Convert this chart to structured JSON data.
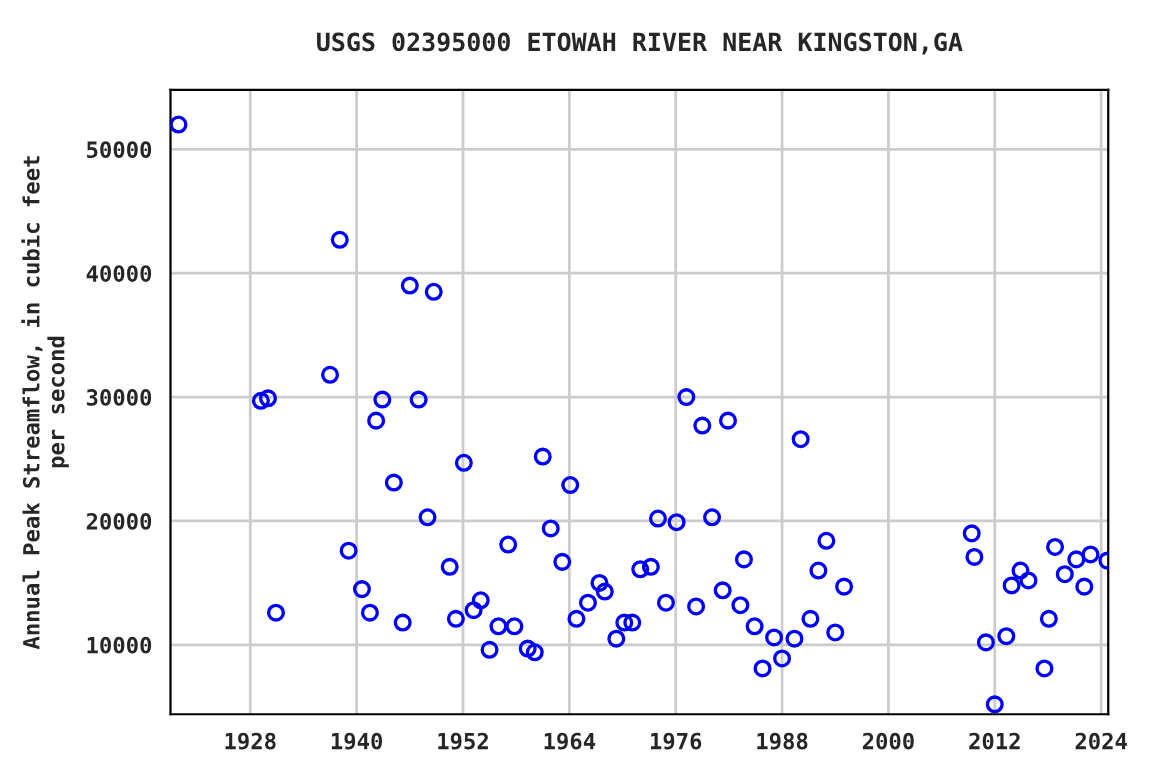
{
  "chart_data": {
    "type": "scatter",
    "title": "USGS 02395000 ETOWAH RIVER NEAR KINGSTON,GA",
    "ylabel": "Annual Peak Streamflow, in cubic feet\nper second",
    "x": [
      1919.9,
      1929.2,
      1930.0,
      1930.9,
      1937.0,
      1938.1,
      1939.1,
      1940.6,
      1941.5,
      1942.2,
      1942.9,
      1944.2,
      1945.2,
      1946.0,
      1947.0,
      1948.0,
      1948.7,
      1950.5,
      1951.2,
      1952.1,
      1953.2,
      1954.0,
      1955.0,
      1956.0,
      1957.1,
      1957.8,
      1959.3,
      1960.1,
      1961.0,
      1961.9,
      1963.2,
      1964.1,
      1964.8,
      1966.1,
      1967.4,
      1968.0,
      1969.3,
      1970.2,
      1971.1,
      1972.0,
      1973.2,
      1974.0,
      1974.9,
      1976.1,
      1977.2,
      1978.3,
      1979.0,
      1980.1,
      1981.3,
      1981.9,
      1983.3,
      1983.7,
      1984.9,
      1985.8,
      1987.1,
      1988.0,
      1989.4,
      1990.1,
      1991.2,
      1992.1,
      1993.0,
      1994.0,
      1995.0,
      2009.4,
      2009.7,
      2011.0,
      2012.0,
      2013.3,
      2013.9,
      2014.9,
      2015.8,
      2017.6,
      2018.1,
      2018.8,
      2019.9,
      2021.2,
      2022.1,
      2022.8,
      2024.7
    ],
    "series": [
      {
        "color": "#0000ff",
        "values": [
          52000,
          29700,
          29900,
          12600,
          31800,
          42700,
          17600,
          14500,
          12600,
          28100,
          29800,
          23100,
          11800,
          39000,
          29800,
          20300,
          38500,
          16300,
          12100,
          24700,
          12800,
          13600,
          9600,
          11500,
          18100,
          11500,
          9700,
          9400,
          25200,
          19400,
          16700,
          22900,
          12100,
          13400,
          15000,
          14300,
          10500,
          11800,
          11800,
          16100,
          16300,
          20200,
          13400,
          19900,
          30000,
          13100,
          27700,
          20300,
          14400,
          28100,
          13200,
          16900,
          11500,
          8100,
          10600,
          8900,
          10500,
          26600,
          12100,
          16000,
          18400,
          11000,
          14700,
          19000,
          17100,
          10200,
          5200,
          10700,
          14800,
          16000,
          15200,
          8100,
          12100,
          17900,
          15700,
          16900,
          14700,
          17300,
          16800
        ]
      }
    ],
    "xlim": [
      1919,
      2024.8
    ],
    "ylim": [
      4400,
      54800
    ],
    "xticks": [
      1928,
      1940,
      1952,
      1964,
      1976,
      1988,
      2000,
      2012,
      2024
    ],
    "yticks": [
      10000,
      20000,
      30000,
      40000,
      50000
    ],
    "grid": true,
    "marker": "circle",
    "legend": false
  }
}
